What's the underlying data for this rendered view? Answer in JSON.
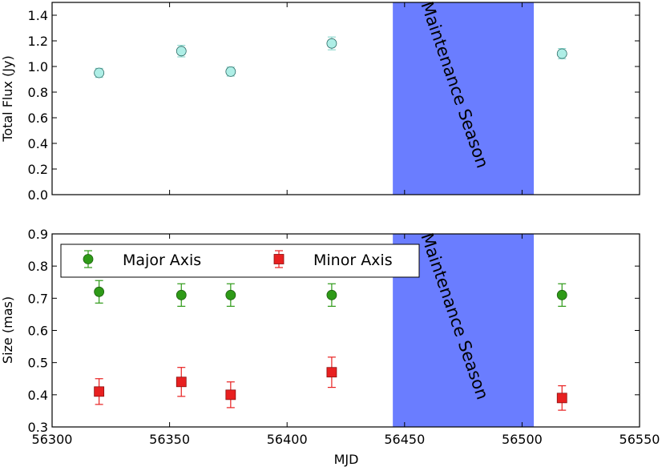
{
  "chart_data": [
    {
      "type": "scatter",
      "ylabel": "Total Flux (Jy)",
      "xlabel": "",
      "xlim": [
        56300,
        56550
      ],
      "ylim": [
        0.0,
        1.5
      ],
      "yticks": [
        0.0,
        0.2,
        0.4,
        0.6,
        0.8,
        1.0,
        1.2,
        1.4
      ],
      "ytick_labels": [
        "0.0",
        "0.2",
        "0.4",
        "0.6",
        "0.8",
        "1.0",
        "1.2",
        "1.4"
      ],
      "xticks": [
        56300,
        56350,
        56400,
        56450,
        56500,
        56550
      ],
      "shaded_region": {
        "x": [
          56445,
          56505
        ],
        "label": "Maintenance Season",
        "color": "#6a7dff"
      },
      "series": [
        {
          "name": "Total Flux",
          "marker": "circle",
          "color": "#aeeee6",
          "x": [
            56320,
            56355,
            56376,
            56419,
            56517
          ],
          "y": [
            0.95,
            1.12,
            0.96,
            1.18,
            1.1
          ],
          "err": [
            0.035,
            0.045,
            0.035,
            0.05,
            0.04
          ]
        }
      ]
    },
    {
      "type": "scatter",
      "ylabel": "Size (mas)",
      "xlabel": "MJD",
      "xlim": [
        56300,
        56550
      ],
      "ylim": [
        0.3,
        0.9
      ],
      "yticks": [
        0.3,
        0.4,
        0.5,
        0.6,
        0.7,
        0.8,
        0.9
      ],
      "ytick_labels": [
        "0.3",
        "0.4",
        "0.5",
        "0.6",
        "0.7",
        "0.8",
        "0.9"
      ],
      "xticks": [
        56300,
        56350,
        56400,
        56450,
        56500,
        56550
      ],
      "xtick_labels": [
        "56300",
        "56350",
        "56400",
        "56450",
        "56500",
        "56550"
      ],
      "shaded_region": {
        "x": [
          56445,
          56505
        ],
        "label": "Maintenance Season",
        "color": "#6a7dff"
      },
      "legend": "upper-left",
      "series": [
        {
          "name": "Major Axis",
          "marker": "circle",
          "color": "#2e9a17",
          "x": [
            56320,
            56355,
            56376,
            56419,
            56517
          ],
          "y": [
            0.72,
            0.71,
            0.71,
            0.71,
            0.71
          ],
          "err": [
            0.035,
            0.035,
            0.035,
            0.035,
            0.035
          ]
        },
        {
          "name": "Minor Axis",
          "marker": "square",
          "color": "#e82020",
          "x": [
            56320,
            56355,
            56376,
            56419,
            56517
          ],
          "y": [
            0.41,
            0.44,
            0.4,
            0.47,
            0.39
          ],
          "err": [
            0.04,
            0.045,
            0.04,
            0.047,
            0.038
          ]
        }
      ]
    }
  ]
}
